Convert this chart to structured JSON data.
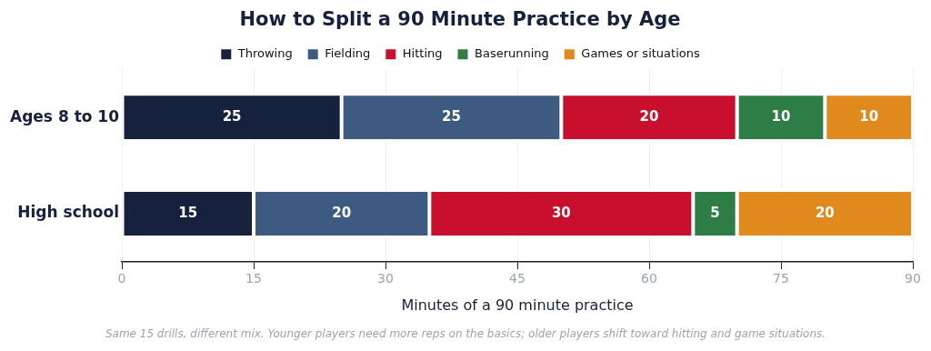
{
  "chart_data": {
    "type": "bar",
    "orientation": "horizontal",
    "stacked": true,
    "title": "How to Split a 90 Minute Practice by Age",
    "xlabel": "Minutes of a 90 minute practice",
    "categories": [
      "Ages 8 to 10",
      "High school"
    ],
    "series": [
      {
        "name": "Throwing",
        "color": "#15213d",
        "values": [
          25,
          15
        ]
      },
      {
        "name": "Fielding",
        "color": "#3d5a80",
        "values": [
          25,
          20
        ]
      },
      {
        "name": "Hitting",
        "color": "#c8102e",
        "values": [
          20,
          30
        ]
      },
      {
        "name": "Baserunning",
        "color": "#2e7d46",
        "values": [
          10,
          5
        ]
      },
      {
        "name": "Games or situations",
        "color": "#e08a1e",
        "values": [
          10,
          20
        ]
      }
    ],
    "xlim": [
      0,
      90
    ],
    "xticks": [
      0,
      15,
      30,
      45,
      60,
      75,
      90
    ],
    "grid": "x",
    "legend": "top",
    "data_labels": true,
    "annotations": [
      "Same 15 drills, different mix. Younger players need more reps on the basics; older players shift toward hitting and game situations."
    ]
  }
}
